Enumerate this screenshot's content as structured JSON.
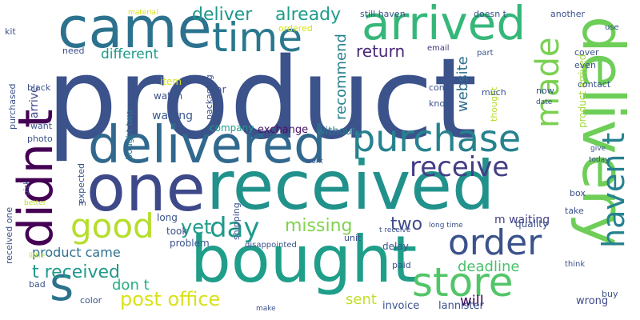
{
  "words": [
    {
      "text": "product",
      "color": "#3b528b"
    },
    {
      "text": "received",
      "color": "#21918c"
    },
    {
      "text": "bought",
      "color": "#1f9e89"
    },
    {
      "text": "delivered",
      "color": "#31688e"
    },
    {
      "text": "one",
      "color": "#3e4989"
    },
    {
      "text": "delivery",
      "color": "#6ece58"
    },
    {
      "text": "came",
      "color": "#2c728e"
    },
    {
      "text": "arrived",
      "color": "#35b779"
    },
    {
      "text": "didn t",
      "color": "#440154"
    },
    {
      "text": "purchase",
      "color": "#26828e"
    },
    {
      "text": "time",
      "color": "#2a788e"
    },
    {
      "text": "store",
      "color": "#52c569"
    },
    {
      "text": "order",
      "color": "#3b528b"
    },
    {
      "text": "made",
      "color": "#7ad151"
    },
    {
      "text": "haven t",
      "color": "#26828e"
    },
    {
      "text": "good",
      "color": "#b5de2b"
    },
    {
      "text": "receive",
      "color": "#433e85"
    },
    {
      "text": "day",
      "color": "#1f9a8a"
    },
    {
      "text": "s",
      "color": "#2c728e"
    },
    {
      "text": "deliver",
      "color": "#1f988b"
    },
    {
      "text": "already",
      "color": "#1e9c89"
    },
    {
      "text": "return",
      "color": "#482878"
    },
    {
      "text": "recommend",
      "color": "#27808e"
    },
    {
      "text": "website",
      "color": "#2e6e8e"
    },
    {
      "text": "missing",
      "color": "#7fd34e"
    },
    {
      "text": "two",
      "color": "#3e4989"
    },
    {
      "text": "yet",
      "color": "#1f9e89"
    },
    {
      "text": "post office",
      "color": "#d8e219"
    },
    {
      "text": "deadline",
      "color": "#4ac16d"
    },
    {
      "text": "t received",
      "color": "#1f9a8a"
    },
    {
      "text": "don t",
      "color": "#27ad81"
    },
    {
      "text": "will",
      "color": "#440154"
    },
    {
      "text": "sent",
      "color": "#c2df23"
    },
    {
      "text": "different",
      "color": "#1f9a8a"
    },
    {
      "text": "product came",
      "color": "#2d708e"
    },
    {
      "text": "arrive",
      "color": "#3e4989"
    },
    {
      "text": "m waiting",
      "color": "#433e85"
    },
    {
      "text": "waiting",
      "color": "#38588c"
    },
    {
      "text": "exchange",
      "color": "#471164"
    },
    {
      "text": "without",
      "color": "#2a788e"
    },
    {
      "text": "company",
      "color": "#1f9e89"
    },
    {
      "text": "invoice",
      "color": "#3b528b"
    },
    {
      "text": "lannister",
      "color": "#3b528b"
    },
    {
      "text": "wrong",
      "color": "#3e4989"
    },
    {
      "text": "still haven",
      "color": "#3b528b"
    },
    {
      "text": "doesn t",
      "color": "#3b528b"
    },
    {
      "text": "another",
      "color": "#3b528b"
    },
    {
      "text": "email",
      "color": "#46337e"
    },
    {
      "text": "part",
      "color": "#3b528b"
    },
    {
      "text": "cover",
      "color": "#3b528b"
    },
    {
      "text": "even",
      "color": "#3b528b"
    },
    {
      "text": "contact",
      "color": "#3b528b"
    },
    {
      "text": "product arrived",
      "color": "#a0da39"
    },
    {
      "text": "thought",
      "color": "#b5de2b"
    },
    {
      "text": "much",
      "color": "#3b528b"
    },
    {
      "text": "know",
      "color": "#3b528b"
    },
    {
      "text": "come",
      "color": "#3b528b"
    },
    {
      "text": "now",
      "color": "#3b528b"
    },
    {
      "text": "date",
      "color": "#3b528b"
    },
    {
      "text": "need",
      "color": "#3b528b"
    },
    {
      "text": "kit",
      "color": "#3b528b"
    },
    {
      "text": "black",
      "color": "#3b528b"
    },
    {
      "text": "purchased",
      "color": "#3b528b"
    },
    {
      "text": "want",
      "color": "#3b528b"
    },
    {
      "text": "photo",
      "color": "#3b528b"
    },
    {
      "text": "received one",
      "color": "#3b528b"
    },
    {
      "text": "pick",
      "color": "#3b528b"
    },
    {
      "text": "expected",
      "color": "#3b528b"
    },
    {
      "text": "m",
      "color": "#3b528b"
    },
    {
      "text": "better",
      "color": "#b5de2b"
    },
    {
      "text": "little",
      "color": "#b5de2b"
    },
    {
      "text": "bad",
      "color": "#3b528b"
    },
    {
      "text": "color",
      "color": "#3b528b"
    },
    {
      "text": "make",
      "color": "#3b528b"
    },
    {
      "text": "material",
      "color": "#d8e219"
    },
    {
      "text": "ordered",
      "color": "#d8e219"
    },
    {
      "text": "item",
      "color": "#d8e219"
    },
    {
      "text": "watch",
      "color": "#3b528b"
    },
    {
      "text": "bought two",
      "color": "#2a788e"
    },
    {
      "text": "packaging",
      "color": "#3b528b"
    },
    {
      "text": "far",
      "color": "#3b528b"
    },
    {
      "text": "shipping",
      "color": "#3b528b"
    },
    {
      "text": "long",
      "color": "#3b528b"
    },
    {
      "text": "took",
      "color": "#3b528b"
    },
    {
      "text": "problem",
      "color": "#3b528b"
    },
    {
      "text": "disappointed",
      "color": "#3b528b"
    },
    {
      "text": "unit",
      "color": "#3b528b"
    },
    {
      "text": "paid",
      "color": "#3b528b"
    },
    {
      "text": "delay",
      "color": "#3b528b"
    },
    {
      "text": "t receive",
      "color": "#3b528b"
    },
    {
      "text": "long time",
      "color": "#3b528b"
    },
    {
      "text": "quality",
      "color": "#3b528b"
    },
    {
      "text": "take",
      "color": "#3b528b"
    },
    {
      "text": "box",
      "color": "#3b528b"
    },
    {
      "text": "give",
      "color": "#3b528b"
    },
    {
      "text": "today",
      "color": "#3b528b"
    },
    {
      "text": "work",
      "color": "#3b528b"
    },
    {
      "text": "think",
      "color": "#3b528b"
    },
    {
      "text": "buy",
      "color": "#3b528b"
    },
    {
      "text": "use",
      "color": "#3b528b"
    }
  ]
}
